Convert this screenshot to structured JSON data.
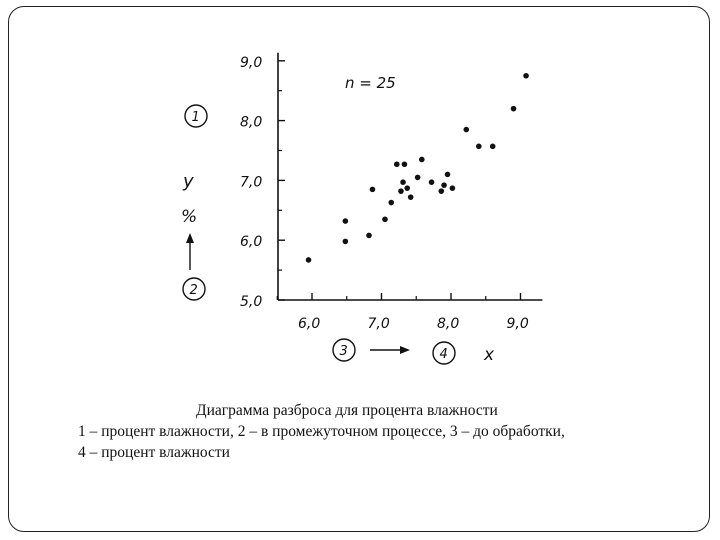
{
  "chart_data": {
    "type": "scatter",
    "annotation": "n = 25",
    "ylabel": "y",
    "ylabel_unit": "%",
    "xlabel": "x",
    "xlim": [
      5.5,
      9.2
    ],
    "ylim": [
      5.0,
      9.0
    ],
    "xticks": [
      "6,0",
      "7,0",
      "8,0",
      "9,0"
    ],
    "yticks": [
      "5,0",
      "6,0",
      "7,0",
      "8,0",
      "9,0"
    ],
    "circled_labels": [
      "1",
      "2",
      "3",
      "4"
    ],
    "grid": false,
    "points": [
      {
        "x": 5.95,
        "y": 5.67
      },
      {
        "x": 6.48,
        "y": 6.32
      },
      {
        "x": 6.48,
        "y": 5.98
      },
      {
        "x": 6.82,
        "y": 6.08
      },
      {
        "x": 6.87,
        "y": 6.85
      },
      {
        "x": 7.05,
        "y": 6.35
      },
      {
        "x": 7.14,
        "y": 6.63
      },
      {
        "x": 7.22,
        "y": 7.27
      },
      {
        "x": 7.28,
        "y": 6.82
      },
      {
        "x": 7.31,
        "y": 6.97
      },
      {
        "x": 7.33,
        "y": 7.27
      },
      {
        "x": 7.37,
        "y": 6.87
      },
      {
        "x": 7.42,
        "y": 6.72
      },
      {
        "x": 7.52,
        "y": 7.05
      },
      {
        "x": 7.58,
        "y": 7.35
      },
      {
        "x": 7.72,
        "y": 6.97
      },
      {
        "x": 7.86,
        "y": 6.82
      },
      {
        "x": 7.9,
        "y": 6.92
      },
      {
        "x": 7.95,
        "y": 7.1
      },
      {
        "x": 8.02,
        "y": 6.87
      },
      {
        "x": 8.22,
        "y": 7.85
      },
      {
        "x": 8.4,
        "y": 7.57
      },
      {
        "x": 8.6,
        "y": 7.57
      },
      {
        "x": 8.9,
        "y": 8.2
      },
      {
        "x": 9.08,
        "y": 8.75
      }
    ]
  },
  "caption": {
    "title": "Диаграмма разброса для процента влажности",
    "line2": "1 – процент влажности, 2 – в промежуточном процессе, 3 – до обработки,",
    "line3": "4 – процент влажности"
  }
}
